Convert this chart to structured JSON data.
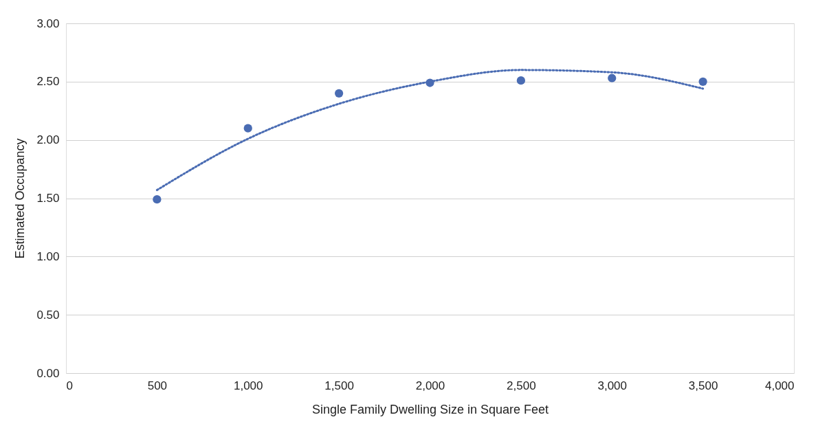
{
  "chart_data": {
    "type": "scatter",
    "xlabel": "Single Family Dwelling Size in Square Feet",
    "ylabel": "Estimated Occupancy",
    "x": [
      500,
      1000,
      1500,
      2000,
      2500,
      3000,
      3500
    ],
    "series": [
      {
        "color": "#4a6cb3",
        "values": [
          1.49,
          2.1,
          2.4,
          2.49,
          2.51,
          2.53,
          2.5
        ]
      },
      {
        "type": "line",
        "color": "#4a6cb3",
        "line_style": "dotted",
        "marker": "none",
        "x": [
          500,
          1000,
          1500,
          2000,
          2500,
          3000,
          3500
        ],
        "values": [
          1.57,
          2.01,
          2.31,
          2.5,
          2.6,
          2.58,
          2.44
        ]
      }
    ],
    "marker": "circle",
    "grid": "y",
    "xlim": [
      0,
      4000
    ],
    "ylim": [
      0,
      3
    ],
    "xticks": [
      0,
      500,
      {
        "value": 1000,
        "label": "1,000"
      },
      {
        "value": 1500,
        "label": "1,500"
      },
      {
        "value": 2000,
        "label": "2,000"
      },
      {
        "value": 2500,
        "label": "2,500"
      },
      {
        "value": 3000,
        "label": "3,000"
      },
      {
        "value": 3500,
        "label": "3,500"
      },
      {
        "value": 4000,
        "label": "4,000"
      }
    ],
    "yticks": [
      {
        "value": 0,
        "label": "0.00"
      },
      {
        "value": 0.5,
        "label": "0.50"
      },
      {
        "value": 1,
        "label": "1.00"
      },
      {
        "value": 1.5,
        "label": "1.50"
      },
      {
        "value": 2,
        "label": "2.00"
      },
      {
        "value": 2.5,
        "label": "2.50"
      },
      {
        "value": 3,
        "label": "3.00"
      }
    ]
  }
}
